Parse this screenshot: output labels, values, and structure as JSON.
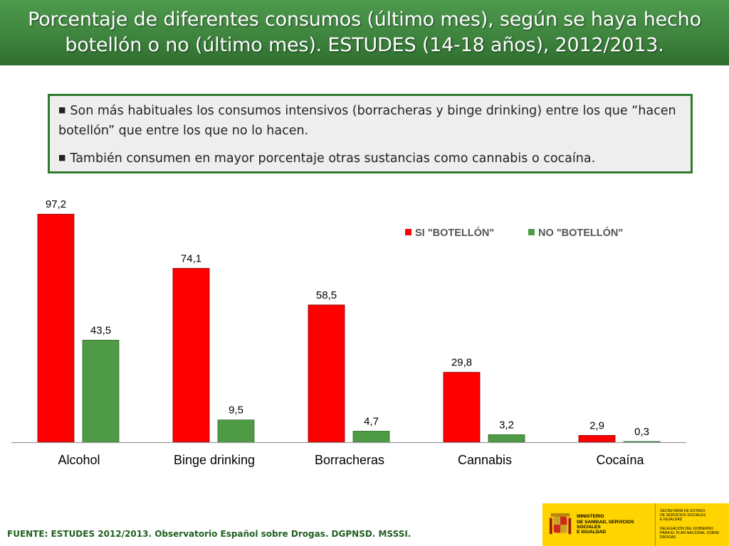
{
  "title": "Porcentaje de diferentes consumos (último mes), según se haya hecho botellón o no (último mes). ESTUDES (14-18 años), 2012/2013.",
  "notes": [
    "Son más habituales los consumos intensivos (borracheras y binge drinking) entre los que “hacen botellón” que entre los que no lo hacen.",
    "También consumen en mayor porcentaje otras sustancias como cannabis o cocaína."
  ],
  "chart_data": {
    "type": "bar",
    "categories": [
      "Alcohol",
      "Binge drinking",
      "Borracheras",
      "Cannabis",
      "Cocaína"
    ],
    "series": [
      {
        "name": "SI \"BOTELLÓN\"",
        "color": "#ff0000",
        "values": [
          97.2,
          74.1,
          58.5,
          29.8,
          2.9
        ]
      },
      {
        "name": "NO \"BOTELLÓN\"",
        "color": "#4f9a45",
        "values": [
          43.5,
          9.5,
          4.7,
          3.2,
          0.3
        ]
      }
    ],
    "data_labels": [
      [
        "97,2",
        "74,1",
        "58,5",
        "29,8",
        "2,9"
      ],
      [
        "43,5",
        "9,5",
        "4,7",
        "3,2",
        "0,3"
      ]
    ],
    "ylim": [
      0,
      100
    ],
    "grid": false,
    "legend": "top-right"
  },
  "footer": {
    "source": "FUENTE: ESTUDES 2012/2013. Observatorio Español sobre Drogas. DGPNSD. MSSSI."
  },
  "logo": {
    "ministry": "MINISTERIO\nDE SANIDAD, SERVICIOS SOCIALES\nE IGUALDAD",
    "secretaria": "SECRETARÍA DE ESTADO\nDE SERVICIOS SOCIALES\nE IGUALDAD",
    "delegacion": "DELEGACIÓN DEL GOBIERNO\nPARA EL PLAN NACIONAL SOBRE DROGAS"
  }
}
